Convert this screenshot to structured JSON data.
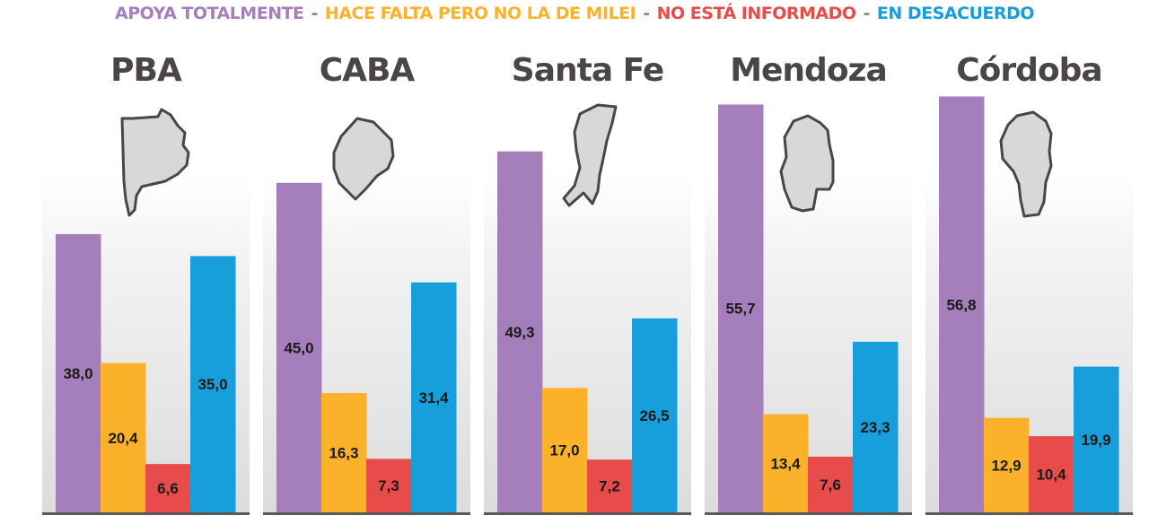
{
  "chart_data": {
    "type": "bar",
    "legend_placement": "top",
    "grid": false,
    "series": [
      {
        "name": "APOYA TOTALMENTE",
        "color": "#a57fbb",
        "values": [
          38.0,
          45.0,
          49.3,
          55.7,
          56.8
        ]
      },
      {
        "name": "HACE FALTA PERO NO LA DE MILEI",
        "color": "#fbb22a",
        "values": [
          20.4,
          16.3,
          17.0,
          13.4,
          12.9
        ]
      },
      {
        "name": "NO ESTÁ INFORMADO",
        "color": "#e84c4a",
        "values": [
          6.6,
          7.3,
          7.2,
          7.6,
          10.4
        ]
      },
      {
        "name": "EN DESACUERDO",
        "color": "#179fdb",
        "values": [
          35.0,
          31.4,
          26.5,
          23.3,
          19.9
        ]
      }
    ],
    "categories": [
      "PBA",
      "CABA",
      "Santa Fe",
      "Mendoza",
      "Córdoba"
    ],
    "labels": [
      [
        "38,0",
        "45,0",
        "49,3",
        "55,7",
        "56,8"
      ],
      [
        "20,4",
        "16,3",
        "17,0",
        "13,4",
        "12,9"
      ],
      [
        "6,6",
        "7,3",
        "7,2",
        "7,6",
        "10,4"
      ],
      [
        "35,0",
        "31,4",
        "26,5",
        "23,3",
        "19,9"
      ]
    ],
    "legend_separator": "-",
    "icons": [
      "pba-map-icon",
      "caba-map-icon",
      "santa-fe-map-icon",
      "mendoza-map-icon",
      "cordoba-map-icon"
    ]
  }
}
